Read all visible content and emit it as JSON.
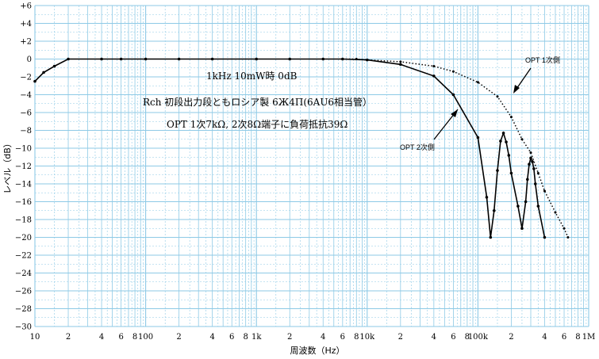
{
  "chart_data": {
    "type": "line",
    "xlabel": "周波数（Hz）",
    "ylabel": "レベル（dB）",
    "xscale": "log",
    "xlim": [
      10,
      1000000
    ],
    "ylim": [
      -30,
      6
    ],
    "grid": true,
    "x_tick_labels": [
      {
        "x": 10,
        "label": "10"
      },
      {
        "x": 20,
        "label": "2"
      },
      {
        "x": 40,
        "label": "4"
      },
      {
        "x": 60,
        "label": "6"
      },
      {
        "x": 80,
        "label": "8"
      },
      {
        "x": 100,
        "label": "100"
      },
      {
        "x": 200,
        "label": "2"
      },
      {
        "x": 400,
        "label": "4"
      },
      {
        "x": 600,
        "label": "6"
      },
      {
        "x": 800,
        "label": "8"
      },
      {
        "x": 1000,
        "label": "1k"
      },
      {
        "x": 2000,
        "label": "2"
      },
      {
        "x": 4000,
        "label": "4"
      },
      {
        "x": 6000,
        "label": "6"
      },
      {
        "x": 8000,
        "label": "8"
      },
      {
        "x": 10000,
        "label": "10k"
      },
      {
        "x": 20000,
        "label": "2"
      },
      {
        "x": 40000,
        "label": "4"
      },
      {
        "x": 60000,
        "label": "6"
      },
      {
        "x": 80000,
        "label": "8"
      },
      {
        "x": 100000,
        "label": "100k"
      },
      {
        "x": 200000,
        "label": "2"
      },
      {
        "x": 400000,
        "label": "4"
      },
      {
        "x": 600000,
        "label": "6"
      },
      {
        "x": 800000,
        "label": "8"
      },
      {
        "x": 1000000,
        "label": "1M"
      }
    ],
    "y_tick_labels": [
      "+6",
      "+4",
      "+2",
      "0",
      "−2",
      "−4",
      "−6",
      "−8",
      "−10",
      "−12",
      "−14",
      "−16",
      "−18",
      "−20",
      "−22",
      "−24",
      "−26",
      "−28",
      "−30"
    ],
    "annotations": [
      "1kHz 10mW時 0dB",
      "Rch 初段出力段ともロシア製 6Ж4П(6AU6相当管）",
      "OPT 1次7kΩ, 2次8Ω端子に負荷抵抗39Ω"
    ],
    "series": [
      {
        "name": "OPT 2次側",
        "style": "solid",
        "x": [
          10,
          12,
          15,
          20,
          40,
          60,
          100,
          200,
          400,
          1000,
          2000,
          4000,
          6000,
          10000,
          20000,
          40000,
          60000,
          100000,
          120000,
          130000,
          140000,
          150000,
          160000,
          170000,
          180000,
          190000,
          200000,
          230000,
          250000,
          270000,
          280000,
          290000,
          300000,
          310000,
          320000,
          330000,
          350000,
          400000
        ],
        "values": [
          -2.5,
          -1.5,
          -0.8,
          0,
          0,
          0,
          0,
          0,
          0,
          0,
          0,
          0,
          0,
          -0.1,
          -0.6,
          -1.9,
          -4.0,
          -8.8,
          -15.5,
          -20,
          -17,
          -12.5,
          -9.2,
          -8.3,
          -9.3,
          -10.8,
          -12.8,
          -16.5,
          -19,
          -16,
          -13.5,
          -11.8,
          -11.1,
          -11.5,
          -12.3,
          -14.0,
          -16.5,
          -20
        ]
      },
      {
        "name": "OPT 1次側",
        "style": "dotted",
        "x": [
          6000,
          8000,
          10000,
          20000,
          40000,
          60000,
          100000,
          150000,
          200000,
          250000,
          300000,
          350000,
          400000,
          500000,
          600000,
          650000
        ],
        "values": [
          0,
          0,
          -0.1,
          -0.3,
          -0.8,
          -1.4,
          -2.6,
          -4.2,
          -6.5,
          -9.0,
          -10.5,
          -12.8,
          -14.8,
          -17.2,
          -19.0,
          -20
        ]
      }
    ]
  }
}
